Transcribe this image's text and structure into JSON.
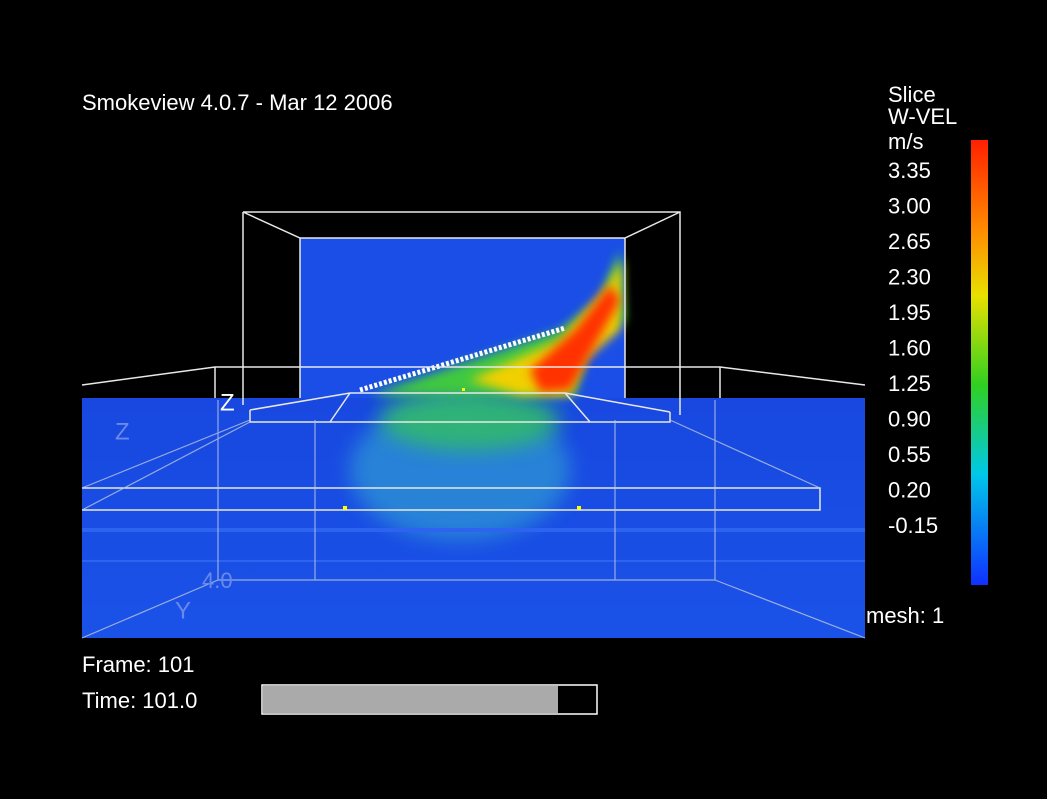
{
  "header": {
    "title": "Smokeview 4.0.7 - Mar 12 2006"
  },
  "colorbar": {
    "title": "Slice",
    "quantity": "W-VEL",
    "unit": "m/s",
    "labels": [
      "3.35",
      "3.00",
      "2.65",
      "2.30",
      "1.95",
      "1.60",
      "1.25",
      "0.90",
      "0.55",
      "0.20",
      "-0.15"
    ]
  },
  "scene": {
    "axis_labels": [
      "Z",
      "Z",
      "Y"
    ],
    "tick_label": "4.0"
  },
  "status": {
    "mesh": "mesh: 1",
    "frame": "Frame: 101",
    "time": "Time: 101.0"
  }
}
